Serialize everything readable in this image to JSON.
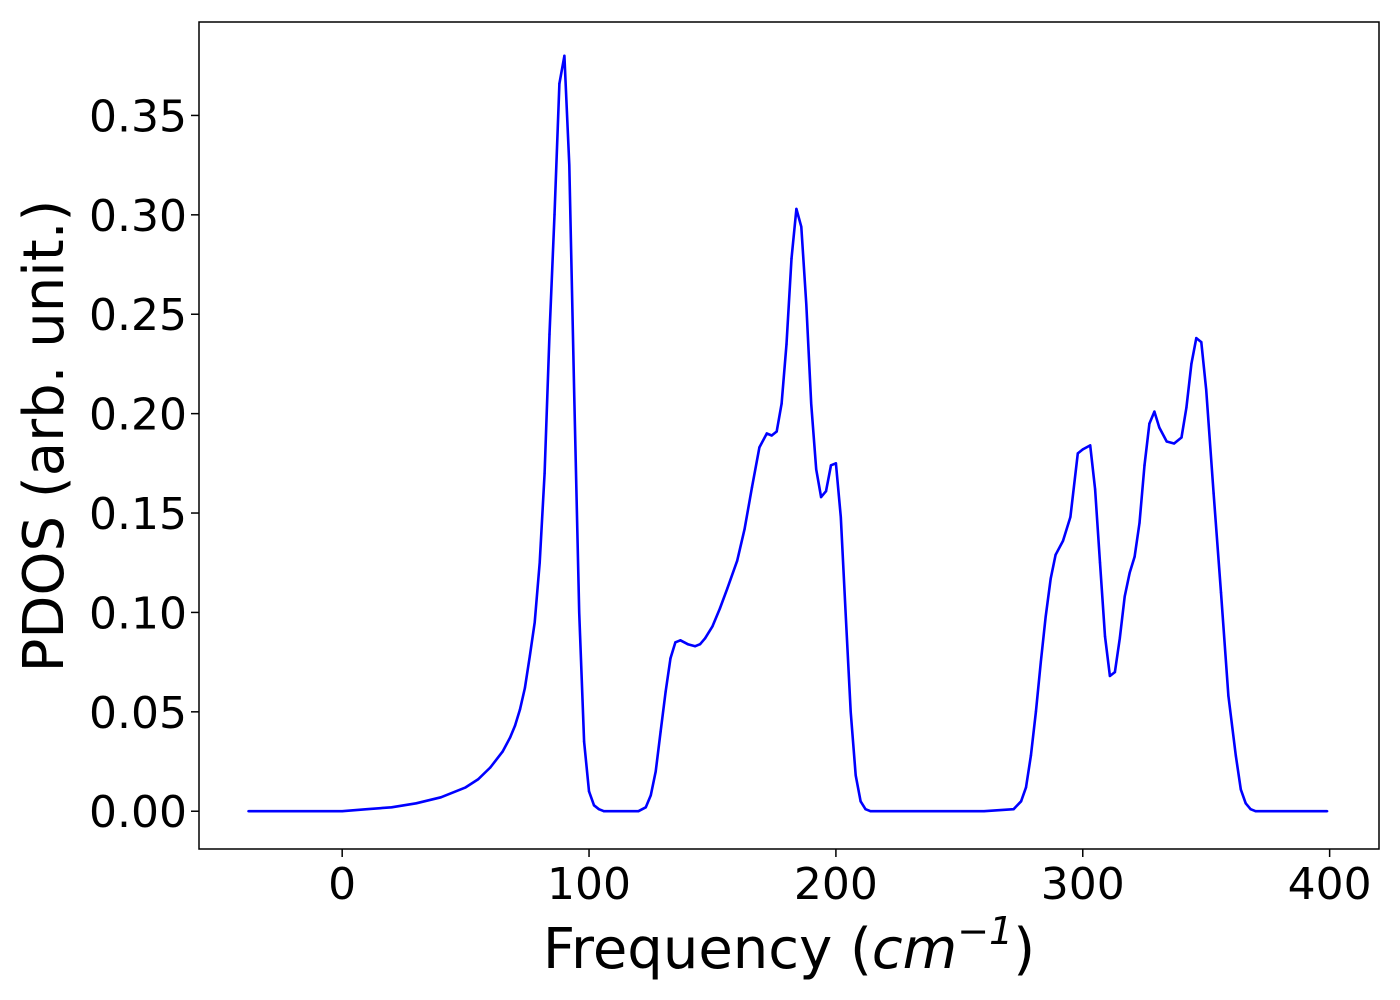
{
  "chart_data": {
    "type": "line",
    "title": "",
    "xlabel": "Frequency (cm⁻¹)",
    "xlabel_parts": {
      "text": "Frequency (",
      "unit": "cm",
      "exponent": "−1",
      "close": ")"
    },
    "ylabel": "PDOS (arb. unit.)",
    "xlim": [
      -58,
      420
    ],
    "ylim": [
      -0.019,
      0.397
    ],
    "xticks": [
      0,
      100,
      200,
      300,
      400
    ],
    "xtick_labels": [
      "0",
      "100",
      "200",
      "300",
      "400"
    ],
    "yticks": [
      0.0,
      0.05,
      0.1,
      0.15,
      0.2,
      0.25,
      0.3,
      0.35
    ],
    "ytick_labels": [
      "0.00",
      "0.05",
      "0.10",
      "0.15",
      "0.20",
      "0.25",
      "0.30",
      "0.35"
    ],
    "grid": false,
    "legend": "none",
    "series": [
      {
        "color": "#0000ff",
        "x": [
          -38,
          0,
          10,
          20,
          30,
          40,
          50,
          55,
          60,
          65,
          68,
          70,
          72,
          74,
          76,
          78,
          80,
          82,
          84,
          86,
          88,
          90,
          92,
          94,
          96,
          98,
          100,
          102,
          104,
          106,
          108,
          110,
          115,
          120,
          123,
          125,
          127,
          129,
          131,
          133,
          135,
          137,
          140,
          143,
          145,
          147,
          150,
          153,
          156,
          160,
          163,
          166,
          169,
          172,
          174,
          176,
          178,
          180,
          182,
          184,
          186,
          188,
          190,
          192,
          194,
          196,
          198,
          200,
          202,
          204,
          206,
          208,
          210,
          212,
          214,
          216,
          218,
          220,
          240,
          260,
          272,
          275,
          277,
          279,
          281,
          283,
          285,
          287,
          289,
          292,
          295,
          298,
          300,
          303,
          305,
          307,
          309,
          311,
          313,
          315,
          317,
          319,
          321,
          323,
          325,
          327,
          329,
          331,
          334,
          337,
          340,
          342,
          344,
          346,
          348,
          350,
          353,
          356,
          359,
          362,
          364,
          366,
          368,
          370,
          372,
          374,
          380,
          399
        ],
        "y": [
          0.0,
          0.0,
          0.001,
          0.002,
          0.004,
          0.007,
          0.012,
          0.016,
          0.022,
          0.03,
          0.037,
          0.043,
          0.051,
          0.062,
          0.078,
          0.095,
          0.125,
          0.17,
          0.24,
          0.3,
          0.366,
          0.38,
          0.325,
          0.21,
          0.1,
          0.035,
          0.01,
          0.003,
          0.001,
          0.0,
          0.0,
          0.0,
          0.0,
          0.0,
          0.002,
          0.008,
          0.02,
          0.04,
          0.06,
          0.077,
          0.085,
          0.086,
          0.084,
          0.083,
          0.084,
          0.087,
          0.093,
          0.102,
          0.112,
          0.126,
          0.142,
          0.163,
          0.183,
          0.19,
          0.189,
          0.191,
          0.205,
          0.235,
          0.278,
          0.303,
          0.294,
          0.255,
          0.205,
          0.172,
          0.158,
          0.161,
          0.174,
          0.175,
          0.148,
          0.098,
          0.05,
          0.018,
          0.005,
          0.001,
          0.0,
          0.0,
          0.0,
          0.0,
          0.0,
          0.0,
          0.001,
          0.005,
          0.012,
          0.028,
          0.05,
          0.075,
          0.098,
          0.117,
          0.129,
          0.136,
          0.148,
          0.18,
          0.182,
          0.184,
          0.162,
          0.125,
          0.088,
          0.068,
          0.07,
          0.087,
          0.108,
          0.12,
          0.128,
          0.145,
          0.174,
          0.195,
          0.201,
          0.193,
          0.186,
          0.185,
          0.188,
          0.203,
          0.225,
          0.238,
          0.236,
          0.212,
          0.16,
          0.11,
          0.058,
          0.028,
          0.011,
          0.004,
          0.001,
          0.0,
          0.0,
          0.0,
          0.0,
          0.0
        ]
      }
    ]
  }
}
